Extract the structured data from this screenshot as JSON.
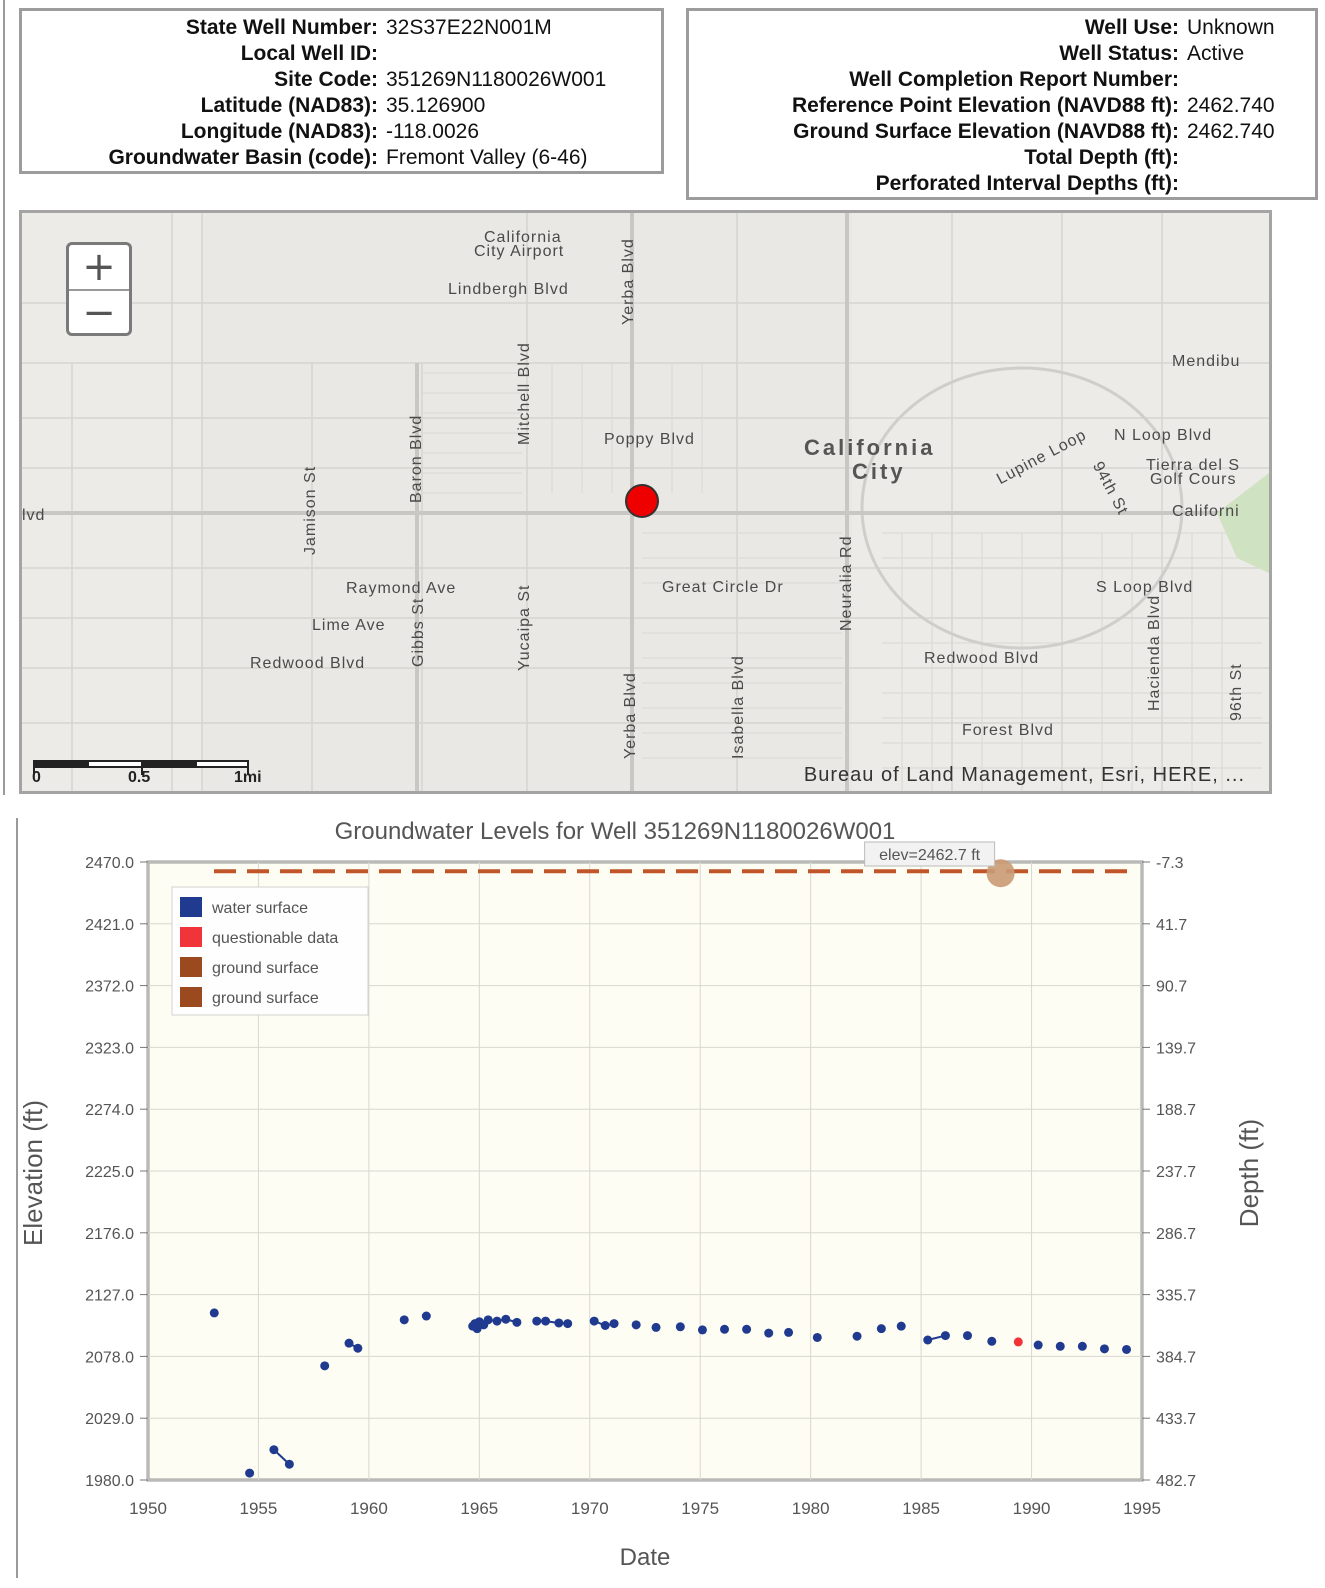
{
  "well_info_left": [
    {
      "label": "State Well Number:",
      "value": "32S37E22N001M"
    },
    {
      "label": "Local Well ID:",
      "value": ""
    },
    {
      "label": "Site Code:",
      "value": "351269N1180026W001"
    },
    {
      "label": "Latitude (NAD83):",
      "value": "35.126900"
    },
    {
      "label": "Longitude (NAD83):",
      "value": "-118.0026"
    },
    {
      "label": "Groundwater Basin (code):",
      "value": "Fremont Valley (6-46)"
    }
  ],
  "well_info_right": [
    {
      "label": "Well Use:",
      "value": "Unknown"
    },
    {
      "label": "Well Status:",
      "value": "Active"
    },
    {
      "label": "Well Completion Report Number:",
      "value": ""
    },
    {
      "label": "Reference Point Elevation (NAVD88 ft):",
      "value": "2462.740"
    },
    {
      "label": "Ground Surface Elevation (NAVD88 ft):",
      "value": "2462.740"
    },
    {
      "label": "Total Depth (ft):",
      "value": ""
    },
    {
      "label": "Perforated Interval Depths (ft):",
      "value": ""
    }
  ],
  "map": {
    "zoom_in": "+",
    "zoom_out": "−",
    "city_name_1": "California",
    "city_name_2": "City",
    "airport_1": "California",
    "airport_2": "City Airport",
    "streets": {
      "lindbergh": "Lindbergh Blvd",
      "yerba_n": "Yerba Blvd",
      "yerba_s": "Yerba Blvd",
      "mitchell": "Mitchell Blvd",
      "baron": "Baron Blvd",
      "jamison": "Jamison St",
      "poppy": "Poppy Blvd",
      "mendibu": "Mendibu",
      "n_loop": "N Loop Blvd",
      "lupine": "Lupine Loop",
      "st94": "94th St",
      "tierra_1": "Tierra del S",
      "tierra_2": "Golf Cours",
      "californi": "Californi",
      "blvd_left": "lvd",
      "raymond": "Raymond Ave",
      "great_circle": "Great Circle Dr",
      "neuralia": "Neuralia Rd",
      "s_loop": "S Loop Blvd",
      "lime": "Lime Ave",
      "gibbs": "Gibbs St",
      "yucaipa": "Yucaipa St",
      "redwood_w": "Redwood Blvd",
      "redwood_e": "Redwood Blvd",
      "hacienda": "Hacienda Blvd",
      "isabella": "Isabella Blvd",
      "st96": "96th St",
      "forest": "Forest Blvd"
    },
    "scale_labels": [
      "0",
      "0.5",
      "1mi"
    ],
    "attribution": "Bureau of Land Management, Esri, HERE, ...",
    "well_marker_color": "#ee0000"
  },
  "chart_data": {
    "type": "scatter",
    "title": "Groundwater Levels for Well 351269N1180026W001",
    "xlabel": "Date",
    "ylabel": "Elevation (ft)",
    "y2label": "Depth (ft)",
    "xlim": [
      1950,
      1995
    ],
    "ylim": [
      1980,
      2470
    ],
    "x_ticks": [
      "1950",
      "1955",
      "1960",
      "1965",
      "1970",
      "1975",
      "1980",
      "1985",
      "1990",
      "1995"
    ],
    "y_ticks": [
      "2470.0",
      "2421.0",
      "2372.0",
      "2323.0",
      "2274.0",
      "2225.0",
      "2176.0",
      "2127.0",
      "2078.0",
      "2029.0",
      "1980.0"
    ],
    "y2_ticks": [
      "-7.3",
      "41.7",
      "90.7",
      "139.7",
      "188.7",
      "237.7",
      "286.7",
      "335.7",
      "384.7",
      "433.7",
      "482.7"
    ],
    "legend": [
      {
        "name": "water surface",
        "color": "#1f3a8f"
      },
      {
        "name": "questionable data",
        "color": "#f0343a"
      },
      {
        "name": "ground surface",
        "color": "#9a4a1e"
      },
      {
        "name": "ground surface",
        "color": "#9a4a1e"
      }
    ],
    "ground_surface_elev": 2462.7,
    "ground_surface_color": "#c0552a",
    "tooltip": "elev=2462.7 ft",
    "tooltip_x": 1988.6,
    "series": [
      {
        "name": "water surface",
        "color": "#1f3a8f",
        "points": [
          [
            1953.0,
            2112.5
          ],
          [
            1954.6,
            1985.5
          ],
          [
            1955.7,
            2004.0
          ],
          [
            1956.4,
            1992.5
          ],
          [
            1958.0,
            2070.5
          ],
          [
            1959.1,
            2088.5
          ],
          [
            1959.5,
            2084.5
          ],
          [
            1961.6,
            2107.0
          ],
          [
            1962.6,
            2110.0
          ],
          [
            1964.7,
            2102.0
          ],
          [
            1964.8,
            2104.0
          ],
          [
            1964.9,
            2100.0
          ],
          [
            1965.0,
            2105.5
          ],
          [
            1965.2,
            2103.0
          ],
          [
            1965.4,
            2107.0
          ],
          [
            1965.8,
            2106.0
          ],
          [
            1966.2,
            2107.5
          ],
          [
            1966.7,
            2105.0
          ],
          [
            1967.6,
            2106.0
          ],
          [
            1968.0,
            2106.0
          ],
          [
            1968.6,
            2104.5
          ],
          [
            1969.0,
            2104.0
          ],
          [
            1970.2,
            2106.0
          ],
          [
            1970.7,
            2102.5
          ],
          [
            1971.1,
            2104.0
          ],
          [
            1972.1,
            2103.0
          ],
          [
            1973.0,
            2101.0
          ],
          [
            1974.1,
            2101.5
          ],
          [
            1975.1,
            2099.0
          ],
          [
            1976.1,
            2099.5
          ],
          [
            1977.1,
            2099.5
          ],
          [
            1978.1,
            2096.5
          ],
          [
            1979.0,
            2097.0
          ],
          [
            1980.3,
            2093.0
          ],
          [
            1982.1,
            2094.0
          ],
          [
            1983.2,
            2100.0
          ],
          [
            1984.1,
            2102.0
          ],
          [
            1985.3,
            2091.0
          ],
          [
            1986.1,
            2094.5
          ],
          [
            1987.1,
            2094.5
          ],
          [
            1988.2,
            2090.0
          ],
          [
            1990.3,
            2087.0
          ],
          [
            1991.3,
            2086.0
          ],
          [
            1992.3,
            2086.0
          ],
          [
            1993.3,
            2084.0
          ],
          [
            1994.3,
            2083.5
          ]
        ]
      },
      {
        "name": "questionable data",
        "color": "#f0343a",
        "points": [
          [
            1989.4,
            2089.5
          ]
        ]
      }
    ]
  }
}
